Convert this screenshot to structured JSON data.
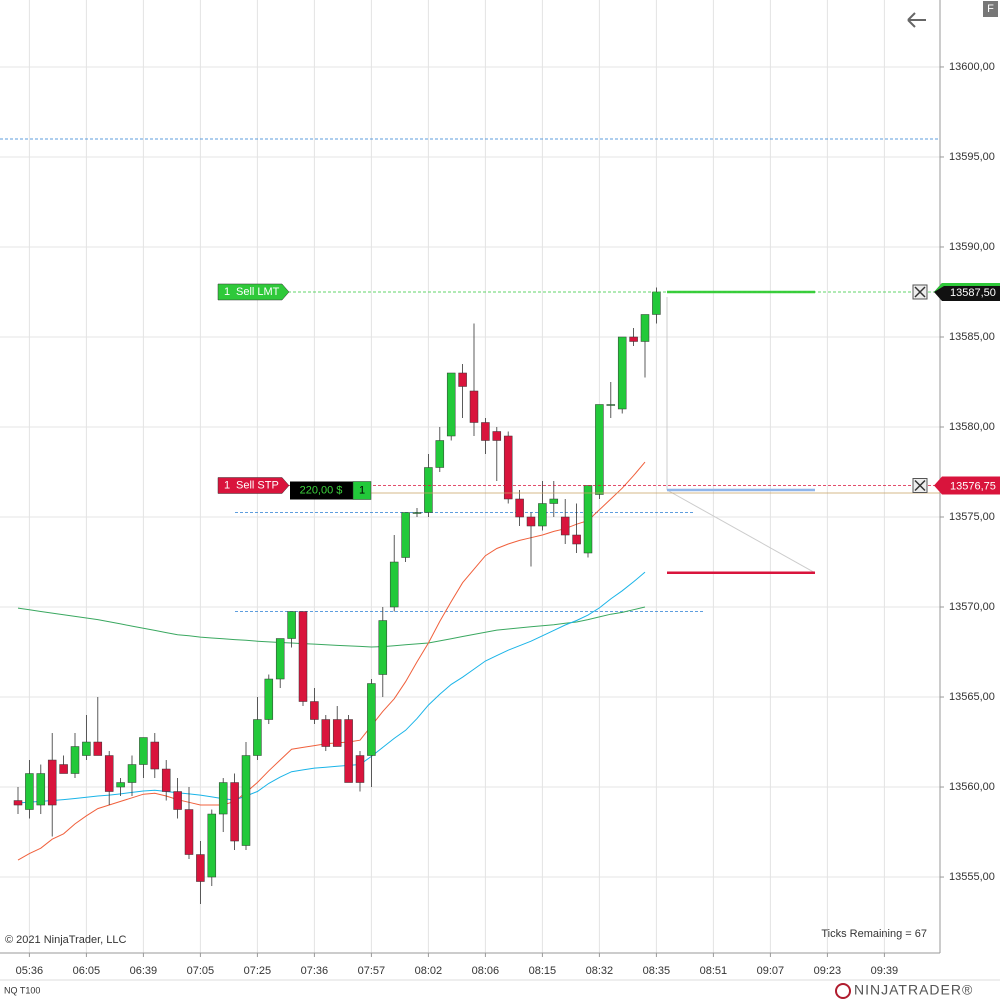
{
  "chart_data": {
    "type": "candlestick",
    "instrument": "NQ T100",
    "categories": [
      null,
      "05:36",
      null,
      null,
      null,
      null,
      "06:05",
      null,
      null,
      null,
      null,
      "06:39",
      null,
      null,
      null,
      null,
      "07:05",
      null,
      null,
      null,
      null,
      "07:25",
      null,
      null,
      null,
      null,
      "07:36",
      null,
      null,
      null,
      null,
      "07:57",
      null,
      null,
      null,
      null,
      "08:02",
      null,
      null,
      null,
      null,
      "08:06",
      null,
      null,
      null,
      null,
      "08:15",
      null,
      null,
      null,
      null,
      "08:32",
      null,
      null,
      null,
      null,
      "08:35",
      null,
      null,
      null,
      null,
      "08:51",
      null,
      null,
      null,
      null,
      "09:07",
      null,
      null,
      null,
      null,
      "09:23",
      null,
      null,
      null,
      null,
      "09:39",
      null,
      null,
      null,
      null
    ],
    "open": [
      13559.25,
      13558.75,
      13559,
      13561.5,
      13561.25,
      13560.75,
      13561.75,
      13562.5,
      13561.75,
      13560,
      13560.25,
      13561.25,
      13562.5,
      13561,
      13559.75,
      13558.75,
      13556.25,
      13555,
      13558.5,
      13560.25,
      13556.75,
      13561.75,
      13563.75,
      13566,
      13568.25,
      13569.75,
      13564.75,
      13563.75,
      13563.75,
      13563.75,
      13561.75,
      13561.75,
      13566.25,
      13570,
      13572.75,
      13575.25,
      13575.25,
      13577.75,
      13579.5,
      13583,
      13582,
      13580.25,
      13579.75,
      13579.5,
      13576,
      13575,
      13574.5,
      13575.75,
      13575,
      13574,
      13573,
      13576.25,
      13581.25,
      13581,
      13585,
      13584.75,
      13586.25,
      null,
      null,
      null,
      null,
      null,
      null,
      null,
      null,
      null,
      null,
      null,
      null,
      null,
      null,
      null,
      null,
      null,
      null,
      null,
      null,
      null,
      null,
      null,
      null
    ],
    "high": [
      13560,
      13561.5,
      13561.25,
      13563,
      13561.75,
      13563,
      13564,
      13565,
      13562,
      13560.5,
      13561.75,
      13562.75,
      13563,
      13561.5,
      13560.5,
      13560,
      13557,
      13558.75,
      13560.5,
      13560.75,
      13562.5,
      13565,
      13566.25,
      13568.25,
      13569.75,
      13569.75,
      13565.5,
      13564,
      13564.5,
      13564,
      13562,
      13566,
      13570,
      13574,
      13575.25,
      13575.5,
      13578.5,
      13580,
      13583,
      13583.5,
      13585.75,
      13580.5,
      13580,
      13579.75,
      13576.5,
      13575.25,
      13577,
      13577,
      13576,
      13575.75,
      13576.75,
      13581.25,
      13582.5,
      13585,
      13585.5,
      13586.25,
      13587.75,
      null,
      null,
      null,
      null,
      null,
      null,
      null,
      null,
      null,
      null,
      null,
      null,
      null,
      null,
      null,
      null,
      null,
      null,
      null,
      null,
      null,
      null,
      null,
      null
    ],
    "low": [
      13558.5,
      13558.25,
      13558.5,
      13557.25,
      13560.75,
      13560.5,
      13561.5,
      13561.75,
      13559,
      13559.5,
      13559.5,
      13560.5,
      13560.5,
      13559.25,
      13558.25,
      13556,
      13553.5,
      13554.5,
      13557.5,
      13556.5,
      13556.5,
      13561.5,
      13563.5,
      13565.5,
      13567.75,
      13564.5,
      13563.5,
      13562,
      13562.25,
      13560.25,
      13559.75,
      13560,
      13565,
      13569.75,
      13572.5,
      13575,
      13575,
      13577.5,
      13579.25,
      13580.5,
      13579.5,
      13578.5,
      13577,
      13575.75,
      13574.5,
      13572.25,
      13574.25,
      13575,
      13573.5,
      13573,
      13572.75,
      13576,
      13580.5,
      13580.75,
      13584.5,
      13582.75,
      13585.75,
      null,
      null,
      null,
      null,
      null,
      null,
      null,
      null,
      null,
      null,
      null,
      null,
      null,
      null,
      null,
      null,
      null,
      null,
      null,
      null,
      null,
      null,
      null,
      null
    ],
    "close": [
      13559,
      13560.75,
      13560.75,
      13559,
      13560.75,
      13562.25,
      13562.5,
      13561.75,
      13559.75,
      13560.25,
      13561.25,
      13562.75,
      13561,
      13559.75,
      13558.75,
      13556.25,
      13554.75,
      13558.5,
      13560.25,
      13557,
      13561.75,
      13563.75,
      13566,
      13568.25,
      13569.75,
      13564.75,
      13563.75,
      13562.25,
      13562.25,
      13560.25,
      13560.25,
      13565.75,
      13569.25,
      13572.5,
      13575.25,
      13575.25,
      13577.75,
      13579.25,
      13583,
      13582.25,
      13580.25,
      13579.25,
      13579.25,
      13576,
      13575,
      13574.5,
      13575.75,
      13576,
      13574,
      13573.5,
      13576.75,
      13581.25,
      13581.25,
      13585,
      13584.75,
      13586.25,
      13587.5,
      null,
      null,
      null,
      null,
      null,
      null,
      null,
      null,
      null,
      null,
      null,
      null,
      null,
      null,
      null,
      null,
      null,
      null,
      null,
      null,
      null,
      null,
      null,
      null
    ],
    "up_color": "#22c93a",
    "down_color": "#d9143c",
    "indicators": [
      {
        "color": "#3aa860",
        "values": [
          13569.94,
          13569.85,
          13569.75,
          13569.66,
          13569.57,
          13569.48,
          13569.39,
          13569.3,
          13569.18,
          13569.06,
          13568.94,
          13568.82,
          13568.7,
          13568.58,
          13568.46,
          13568.4,
          13568.33,
          13568.28,
          13568.24,
          13568.19,
          13568.15,
          13568.1,
          13568.06,
          13568.03,
          13568,
          13567.97,
          13567.94,
          13567.9,
          13567.87,
          13567.84,
          13567.81,
          13567.78,
          13567.8,
          13567.85,
          13567.9,
          13567.95,
          13568,
          13568.12,
          13568.24,
          13568.36,
          13568.48,
          13568.6,
          13568.72,
          13568.78,
          13568.84,
          13568.9,
          13568.96,
          13569.02,
          13569.1,
          13569.17,
          13569.3,
          13569.45,
          13569.6,
          13569.7,
          13569.85,
          13570,
          null,
          null,
          null,
          null,
          null,
          null,
          null,
          null,
          null,
          null,
          null,
          null,
          null,
          null,
          null,
          null,
          null,
          null,
          null,
          null,
          null,
          null,
          null,
          null,
          null
        ]
      },
      {
        "color": "#f0603c",
        "values": [
          13555.94,
          13556.3,
          13556.6,
          13557.1,
          13557.4,
          13557.95,
          13558.4,
          13558.8,
          13559,
          13559.2,
          13559.4,
          13559.6,
          13559.65,
          13559.5,
          13559.3,
          13559.15,
          13559,
          13559,
          13559,
          13559.2,
          13559.7,
          13560.25,
          13560.9,
          13561.5,
          13562.1,
          13562.2,
          13562.3,
          13562.4,
          13562.45,
          13562.5,
          13562.6,
          13563.4,
          13564.2,
          13564.9,
          13565.85,
          13566.95,
          13568,
          13569.2,
          13570.3,
          13571.35,
          13572.1,
          13572.85,
          13573.25,
          13573.5,
          13573.7,
          13573.85,
          13574,
          13574.2,
          13574.35,
          13574.6,
          13574.8,
          13575.4,
          13576,
          13576.6,
          13577.3,
          13578.05,
          null,
          null,
          null,
          null,
          null,
          null,
          null,
          null,
          null,
          null,
          null,
          null,
          null,
          null,
          null,
          null,
          null,
          null,
          null,
          null,
          null,
          null,
          null,
          null,
          null
        ]
      },
      {
        "color": "#1ab4e8",
        "values": [
          13559.11,
          13559.16,
          13559.2,
          13559.25,
          13559.3,
          13559.36,
          13559.43,
          13559.5,
          13559.55,
          13559.62,
          13559.7,
          13559.78,
          13559.82,
          13559.75,
          13559.68,
          13559.62,
          13559.55,
          13559.45,
          13559.35,
          13559.28,
          13559.5,
          13559.75,
          13560.2,
          13560.55,
          13560.85,
          13560.95,
          13561.05,
          13561.1,
          13561.15,
          13561.2,
          13561.25,
          13561.7,
          13562.2,
          13562.7,
          13563.15,
          13563.8,
          13564.55,
          13565.15,
          13565.7,
          13566.1,
          13566.55,
          13567,
          13567.3,
          13567.6,
          13567.85,
          13568.1,
          13568.4,
          13568.7,
          13569,
          13569.25,
          13569.55,
          13569.95,
          13570.45,
          13570.9,
          13571.4,
          13571.94,
          null,
          null,
          null,
          null,
          null,
          null,
          null,
          null,
          null,
          null,
          null,
          null,
          null,
          null,
          null,
          null,
          null,
          null,
          null,
          null,
          null,
          null,
          null,
          null,
          null
        ]
      }
    ],
    "ylim": [
      13550.78,
      13603.72
    ],
    "yticks": [
      {
        "value": 13555,
        "label": "13555,00"
      },
      {
        "value": 13560,
        "label": "13560,00"
      },
      {
        "value": 13565,
        "label": "13565,00"
      },
      {
        "value": 13570,
        "label": "13570,00"
      },
      {
        "value": 13575,
        "label": "13575,00"
      },
      {
        "value": 13580,
        "label": "13580,00"
      },
      {
        "value": 13585,
        "label": "13585,00"
      },
      {
        "value": 13590,
        "label": "13590,00"
      },
      {
        "value": 13595,
        "label": "13595,00"
      },
      {
        "value": 13600,
        "label": "13600,00"
      }
    ],
    "grid": true,
    "levels": [
      13596,
      13575.25,
      13569.75
    ],
    "orders": [
      {
        "quantity": 1,
        "label": "Sell LMT",
        "price": 13587.5,
        "price_label": "13587,50",
        "color": "#2fc93a"
      },
      {
        "quantity": 1,
        "label": "Sell STP",
        "price": 13576.75,
        "price_label": "13576,75",
        "color": "#d9143c"
      }
    ],
    "position": {
      "pnl": "220,00 $",
      "quantity": 1,
      "price": 13576.5
    },
    "drawing": {
      "target": 13587.5,
      "entry": 13576.5,
      "stop": 13571.9
    },
    "ticks_remaining": "Ticks Remaining = 67",
    "copyright": "© 2021 NinjaTrader, LLC"
  },
  "logo": "NINJATRADER®",
  "corner_button": "F"
}
